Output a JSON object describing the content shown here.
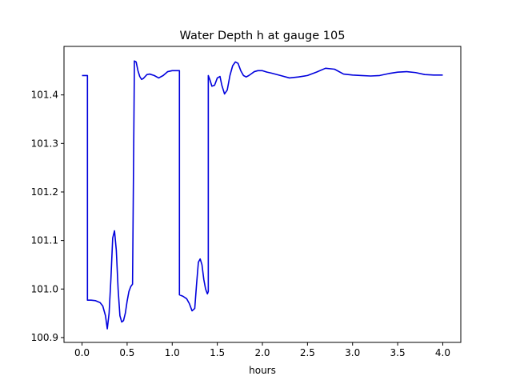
{
  "chart_data": {
    "type": "line",
    "title": "Water Depth h at gauge 105",
    "xlabel": "hours",
    "ylabel": "",
    "xlim": [
      -0.2,
      4.2
    ],
    "ylim": [
      100.89,
      101.5
    ],
    "xticks": [
      0.0,
      0.5,
      1.0,
      1.5,
      2.0,
      2.5,
      3.0,
      3.5,
      4.0
    ],
    "xtick_labels": [
      "0.0",
      "0.5",
      "1.0",
      "1.5",
      "2.0",
      "2.5",
      "3.0",
      "3.5",
      "4.0"
    ],
    "yticks": [
      100.9,
      101.0,
      101.1,
      101.2,
      101.3,
      101.4
    ],
    "ytick_labels": [
      "100.9",
      "101.0",
      "101.1",
      "101.2",
      "101.3",
      "101.4"
    ],
    "grid": false,
    "series": [
      {
        "color": "#0000dd",
        "x": [
          0.0,
          0.06,
          0.06,
          0.1,
          0.15,
          0.2,
          0.23,
          0.26,
          0.28,
          0.3,
          0.32,
          0.34,
          0.36,
          0.38,
          0.4,
          0.42,
          0.44,
          0.46,
          0.48,
          0.5,
          0.52,
          0.54,
          0.56,
          0.58,
          0.58,
          0.6,
          0.62,
          0.64,
          0.66,
          0.68,
          0.7,
          0.72,
          0.75,
          0.8,
          0.85,
          0.9,
          0.95,
          1.0,
          1.05,
          1.08,
          1.08,
          1.12,
          1.16,
          1.19,
          1.22,
          1.25,
          1.27,
          1.29,
          1.31,
          1.33,
          1.35,
          1.37,
          1.39,
          1.4,
          1.4,
          1.42,
          1.44,
          1.47,
          1.5,
          1.53,
          1.55,
          1.58,
          1.61,
          1.64,
          1.67,
          1.7,
          1.73,
          1.76,
          1.79,
          1.82,
          1.85,
          1.88,
          1.91,
          1.95,
          2.0,
          2.05,
          2.1,
          2.2,
          2.3,
          2.4,
          2.5,
          2.6,
          2.7,
          2.8,
          2.9,
          3.0,
          3.1,
          3.2,
          3.3,
          3.4,
          3.5,
          3.6,
          3.7,
          3.8,
          3.9,
          4.0
        ],
        "y": [
          101.44,
          101.44,
          100.977,
          100.977,
          100.976,
          100.972,
          100.965,
          100.945,
          100.918,
          100.95,
          101.02,
          101.105,
          101.12,
          101.08,
          101.0,
          100.945,
          100.932,
          100.935,
          100.95,
          100.975,
          100.995,
          101.005,
          101.01,
          101.45,
          101.47,
          101.468,
          101.45,
          101.438,
          101.432,
          101.434,
          101.438,
          101.442,
          101.443,
          101.44,
          101.435,
          101.44,
          101.448,
          101.45,
          101.45,
          101.45,
          100.988,
          100.985,
          100.98,
          100.97,
          100.955,
          100.96,
          101.01,
          101.055,
          101.062,
          101.05,
          101.02,
          101.0,
          100.99,
          100.995,
          101.44,
          101.43,
          101.418,
          101.42,
          101.435,
          101.438,
          101.42,
          101.402,
          101.41,
          101.44,
          101.46,
          101.468,
          101.465,
          101.45,
          101.44,
          101.437,
          101.44,
          101.444,
          101.448,
          101.45,
          101.45,
          101.447,
          101.445,
          101.44,
          101.435,
          101.437,
          101.44,
          101.447,
          101.455,
          101.453,
          101.443,
          101.441,
          101.44,
          101.439,
          101.44,
          101.444,
          101.447,
          101.448,
          101.446,
          101.442,
          101.441,
          101.441
        ]
      }
    ]
  }
}
